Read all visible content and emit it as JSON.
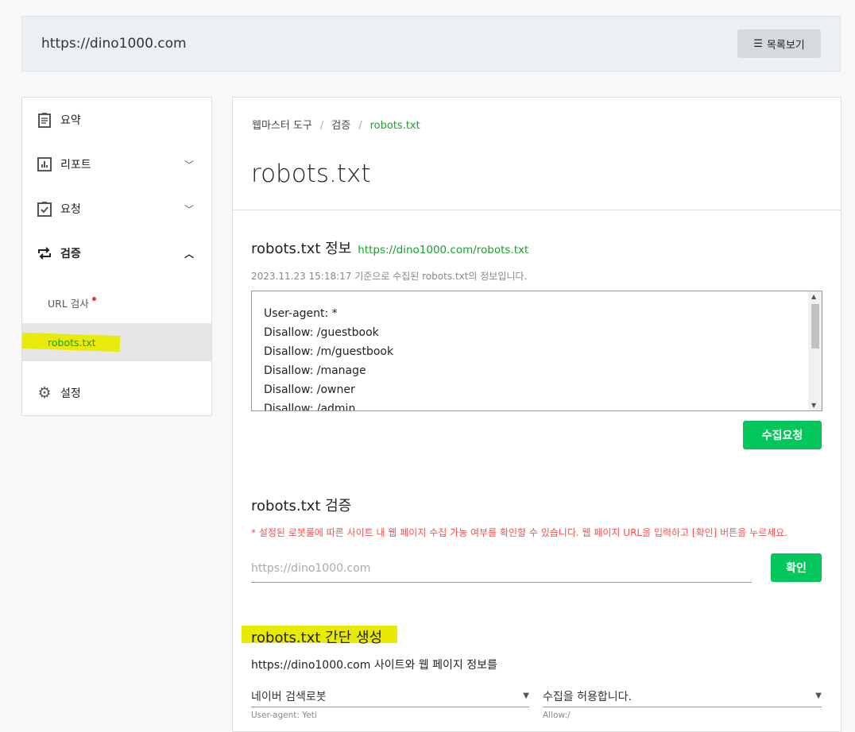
{
  "header": {
    "site_url": "https://dino1000.com",
    "list_button": "목록보기"
  },
  "sidebar": {
    "items": [
      {
        "label": "요약",
        "icon": "clipboard-icon"
      },
      {
        "label": "리포트",
        "icon": "bar-chart-icon",
        "expanded": false
      },
      {
        "label": "요청",
        "icon": "clipboard-check-icon",
        "expanded": false
      },
      {
        "label": "검증",
        "icon": "repeat-icon",
        "expanded": true
      },
      {
        "label": "설정",
        "icon": "gear-icon"
      }
    ],
    "subitems": [
      {
        "label": "URL 검사",
        "badge": true
      },
      {
        "label": "robots.txt",
        "active": true
      }
    ]
  },
  "main": {
    "breadcrumb": [
      "웹마스터 도구",
      "검증",
      "robots.txt"
    ],
    "title": "robots.txt",
    "info": {
      "heading": "robots.txt 정보",
      "link": "https://dino1000.com/robots.txt",
      "meta": "2023.11.23 15:18:17 기준으로 수집된 robots.txt의 정보입니다.",
      "lines": [
        "User-agent: *",
        "Disallow: /guestbook",
        "Disallow: /m/guestbook",
        "Disallow: /manage",
        "Disallow: /owner",
        "Disallow: /admin"
      ],
      "collect_button": "수집요청"
    },
    "verify": {
      "heading": "robots.txt 검증",
      "warning": "* 설정된 로봇룰에 따른 사이트 내 웹 페이지 수집 가능 여부를 확인할 수 있습니다. 웹 페이지 URL을 입력하고 [확인] 버튼을 누르세요.",
      "placeholder": "https://dino1000.com",
      "confirm_button": "확인"
    },
    "generate": {
      "heading": "robots.txt 간단 생성",
      "desc": "https://dino1000.com 사이트와 웹 페이지 정보를",
      "robot_select": "네이버 검색로봇",
      "robot_hint": "User-agent: Yeti",
      "allow_select": "수집을 허용합니다.",
      "allow_hint": "Allow:/"
    }
  },
  "colors": {
    "accent": "#03c75a",
    "link": "#19a02c",
    "warning": "#ff4d4d",
    "highlight": "#e8ea00"
  }
}
